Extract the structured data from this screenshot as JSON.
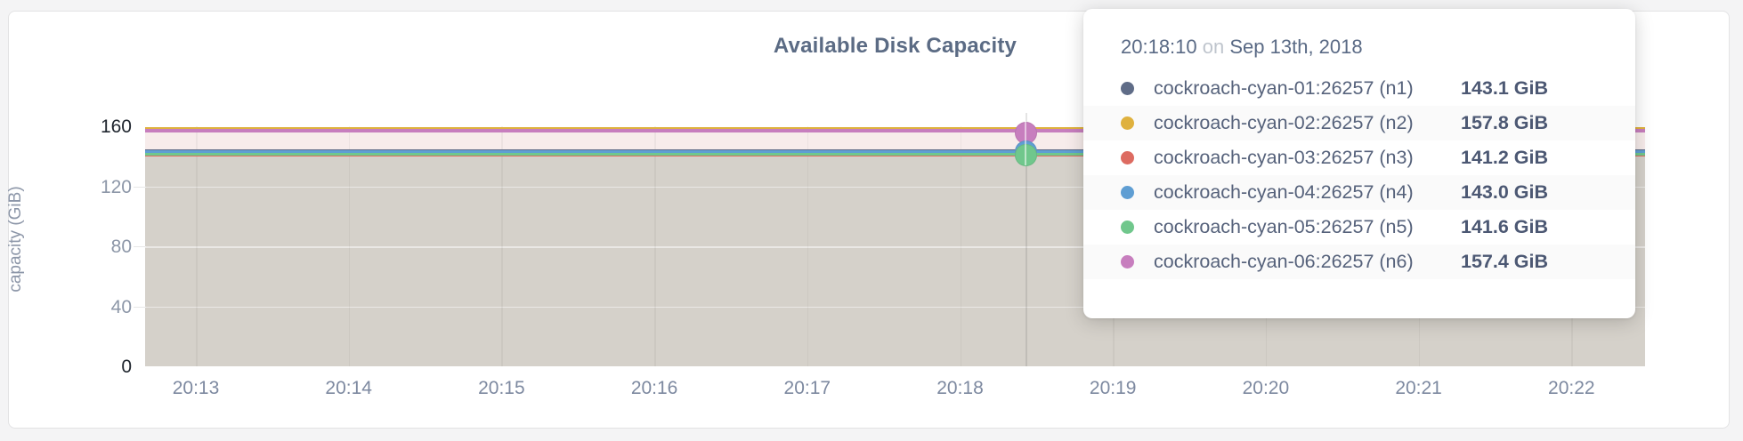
{
  "panel": {
    "title": "Available Disk Capacity"
  },
  "chart_data": {
    "type": "line",
    "title": "Available Disk Capacity",
    "xlabel": "",
    "ylabel": "capacity (GiB)",
    "ylim": [
      0,
      160
    ],
    "y_ticks": [
      0,
      40,
      80,
      120,
      160
    ],
    "y_ticks_emphasized": [
      0,
      160
    ],
    "x_ticks": [
      "20:13",
      "20:14",
      "20:15",
      "20:16",
      "20:17",
      "20:18",
      "20:19",
      "20:20",
      "20:21",
      "20:22"
    ],
    "grid": true,
    "legend_position": "tooltip",
    "series": [
      {
        "name": "cockroach-cyan-01:26257 (n1)",
        "color": "#5f6c87",
        "value_gib": 143.1,
        "value_label": "143.1 GiB"
      },
      {
        "name": "cockroach-cyan-02:26257 (n2)",
        "color": "#dfb13e",
        "value_gib": 157.8,
        "value_label": "157.8 GiB"
      },
      {
        "name": "cockroach-cyan-03:26257 (n3)",
        "color": "#dd6b61",
        "value_gib": 141.2,
        "value_label": "141.2 GiB"
      },
      {
        "name": "cockroach-cyan-04:26257 (n4)",
        "color": "#5f9ed3",
        "value_gib": 143.0,
        "value_label": "143.0 GiB"
      },
      {
        "name": "cockroach-cyan-05:26257 (n5)",
        "color": "#70c78c",
        "value_gib": 141.6,
        "value_label": "141.6 GiB"
      },
      {
        "name": "cockroach-cyan-06:26257 (n6)",
        "color": "#c77ebe",
        "value_gib": 157.4,
        "value_label": "157.4 GiB"
      }
    ],
    "hovered_series": [
      "cockroach-cyan-06:26257 (n6)",
      "cockroach-cyan-04:26257 (n4)",
      "cockroach-cyan-05:26257 (n5)"
    ]
  },
  "tooltip": {
    "time": "20:18:10",
    "conjunction": "on",
    "date": "Sep 13th, 2018"
  },
  "colors": {
    "page_background": "#f4f4f5",
    "panel_background": "#ffffff",
    "title_text": "#5b6b84",
    "axis_text": "#8d97a8",
    "axis_text_emphasized": "#20262f",
    "fill_overlap_gray": "#d5d1ca",
    "fill_pink_band": "#f7eceb"
  }
}
